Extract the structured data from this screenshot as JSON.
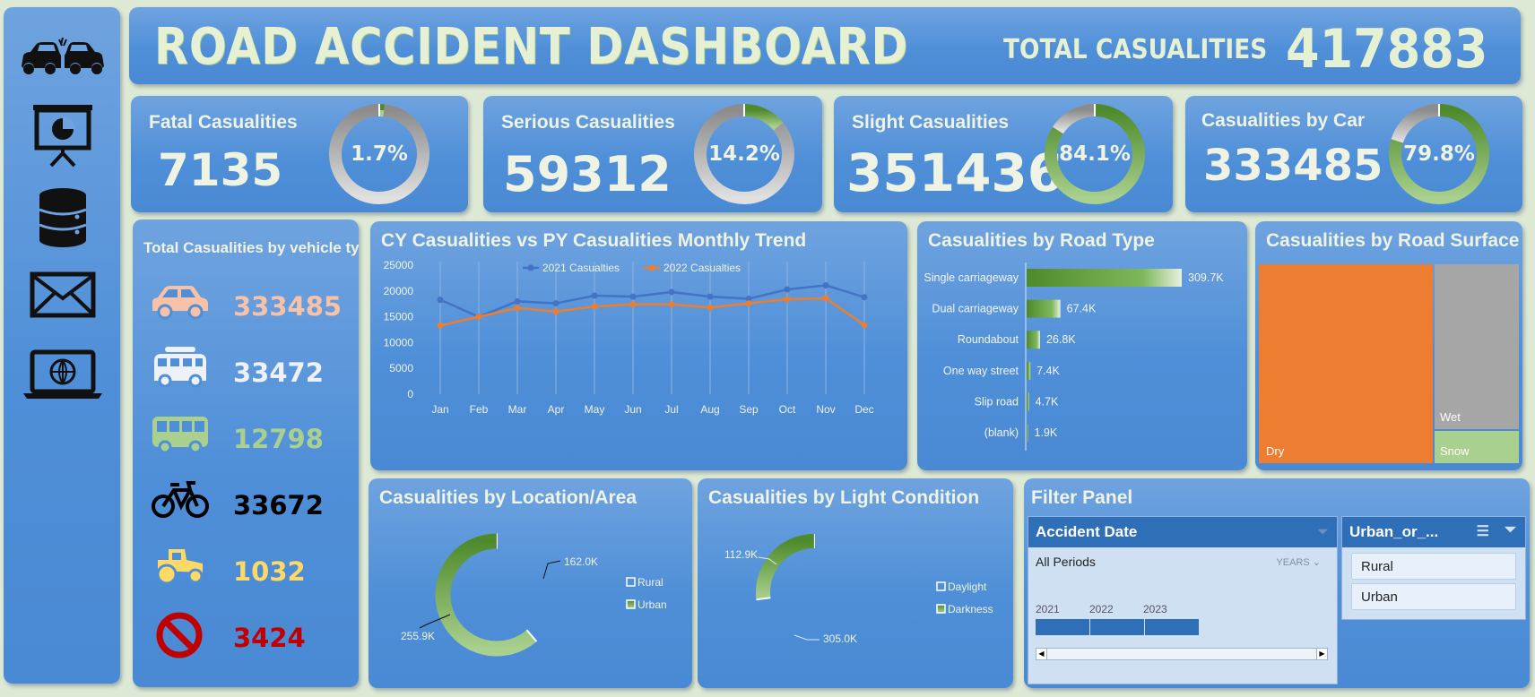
{
  "header": {
    "title": "Road Accident Dashboard",
    "total_label": "Total Casualities",
    "total_value": "417883"
  },
  "sidebar": {
    "icons": [
      "car-crash-icon",
      "presentation-icon",
      "database-icon",
      "mail-icon",
      "laptop-globe-icon"
    ]
  },
  "kpis": [
    {
      "title": "Fatal Casualities",
      "value": "7135",
      "percent_label": "1.7%",
      "percent": 1.7
    },
    {
      "title": "Serious Casualities",
      "value": "59312",
      "percent_label": "14.2%",
      "percent": 14.2
    },
    {
      "title": "Slight Casualities",
      "value": "351436",
      "percent_label": "84.1%",
      "percent": 84.1
    },
    {
      "title": "Casualities by Car",
      "value": "333485",
      "percent_label": "79.8%",
      "percent": 79.8
    }
  ],
  "vehicle_types": {
    "title": "Total Casualities by vehicle type",
    "items": [
      {
        "icon": "car-icon",
        "value": "333485",
        "color": "#f7c2a8"
      },
      {
        "icon": "van-icon",
        "value": "33472",
        "color": "#eef2f7"
      },
      {
        "icon": "bus-icon",
        "value": "12798",
        "color": "#a9d08e"
      },
      {
        "icon": "bicycle-icon",
        "value": "33672",
        "color": "#000000"
      },
      {
        "icon": "tractor-icon",
        "value": "1032",
        "color": "#ffd966"
      },
      {
        "icon": "no-entry-icon",
        "value": "3424",
        "color": "#c00000"
      }
    ]
  },
  "colors": {
    "series_2021": "#4472c4",
    "series_2022": "#ed7d31",
    "green_dark": "#4e8a2b",
    "green_light": "#a9d08e",
    "grey": "#a6a6a6",
    "orange": "#ed7d31"
  },
  "charts": {
    "trend_title": "CY Casualities vs PY Casualities Monthly Trend",
    "road_type_title": "Casualities by Road Type",
    "road_surface_title": "Casualities by Road Surface",
    "location_title": "Casualities by Location/Area",
    "light_title": "Casualities by Light Condition"
  },
  "chart_data": [
    {
      "type": "line",
      "title": "CY Casualities vs PY Casualities Monthly Trend",
      "categories": [
        "Jan",
        "Feb",
        "Mar",
        "Apr",
        "May",
        "Jun",
        "Jul",
        "Aug",
        "Sep",
        "Oct",
        "Nov",
        "Dec"
      ],
      "series": [
        {
          "name": "2021 Casualties",
          "values": [
            18300,
            15000,
            18000,
            17600,
            19100,
            18900,
            19800,
            18900,
            18500,
            20300,
            21100,
            18800
          ]
        },
        {
          "name": "2022 Casualties",
          "values": [
            13300,
            15000,
            16700,
            16000,
            17000,
            17400,
            17400,
            16800,
            17600,
            18400,
            18600,
            13400
          ]
        }
      ],
      "yticks": [
        "0",
        "5000",
        "10000",
        "15000",
        "20000",
        "25000"
      ],
      "ylim": [
        0,
        25000
      ]
    },
    {
      "type": "bar",
      "title": "Casualities by Road Type",
      "categories": [
        "Single carriageway",
        "Dual carriageway",
        "Roundabout",
        "One way street",
        "Slip road",
        "(blank)"
      ],
      "values": [
        309.7,
        67.4,
        26.8,
        7.4,
        4.7,
        1.9
      ],
      "labels": [
        "309.7K",
        "67.4K",
        "26.8K",
        "7.4K",
        "4.7K",
        "1.9K"
      ]
    },
    {
      "type": "heatmap",
      "title": "Casualities by Road Surface",
      "categories": [
        "Dry",
        "Wet",
        "Snow"
      ]
    },
    {
      "type": "pie",
      "title": "Casualities by Location/Area",
      "categories": [
        "Rural",
        "Urban"
      ],
      "values": [
        162.0,
        255.9
      ],
      "labels": [
        "162.0K",
        "255.9K"
      ]
    },
    {
      "type": "pie",
      "title": "Casualities by Light Condition",
      "categories": [
        "Daylight",
        "Darkness"
      ],
      "values": [
        305.0,
        112.9
      ],
      "labels": [
        "305.0K",
        "112.9K"
      ]
    }
  ],
  "filter_panel": {
    "title": "Filter Panel",
    "date_slicer": {
      "title": "Accident Date",
      "period": "All Periods",
      "unit": "YEARS",
      "years": [
        "2021",
        "2022",
        "2023"
      ]
    },
    "area_slicer": {
      "title": "Urban_or_...",
      "options": [
        "Rural",
        "Urban"
      ]
    }
  }
}
